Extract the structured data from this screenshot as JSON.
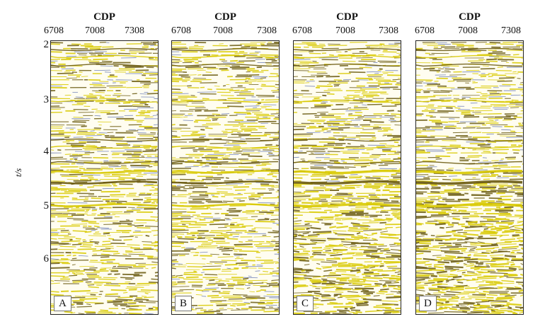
{
  "figure": {
    "x_axis_title": "CDP",
    "x_ticks": [
      "6708",
      "7008",
      "7308"
    ],
    "y_axis_label": "t/s",
    "y_ticks": [
      "2",
      "3",
      "4",
      "5",
      "6"
    ],
    "panels": [
      {
        "label": "A"
      },
      {
        "label": "B"
      },
      {
        "label": "C"
      },
      {
        "label": "D"
      }
    ],
    "colors": {
      "positive": "#d8c900",
      "negative": "#6a5a10",
      "trough": "#5a6fb0",
      "background": "#fffdf0"
    }
  }
}
